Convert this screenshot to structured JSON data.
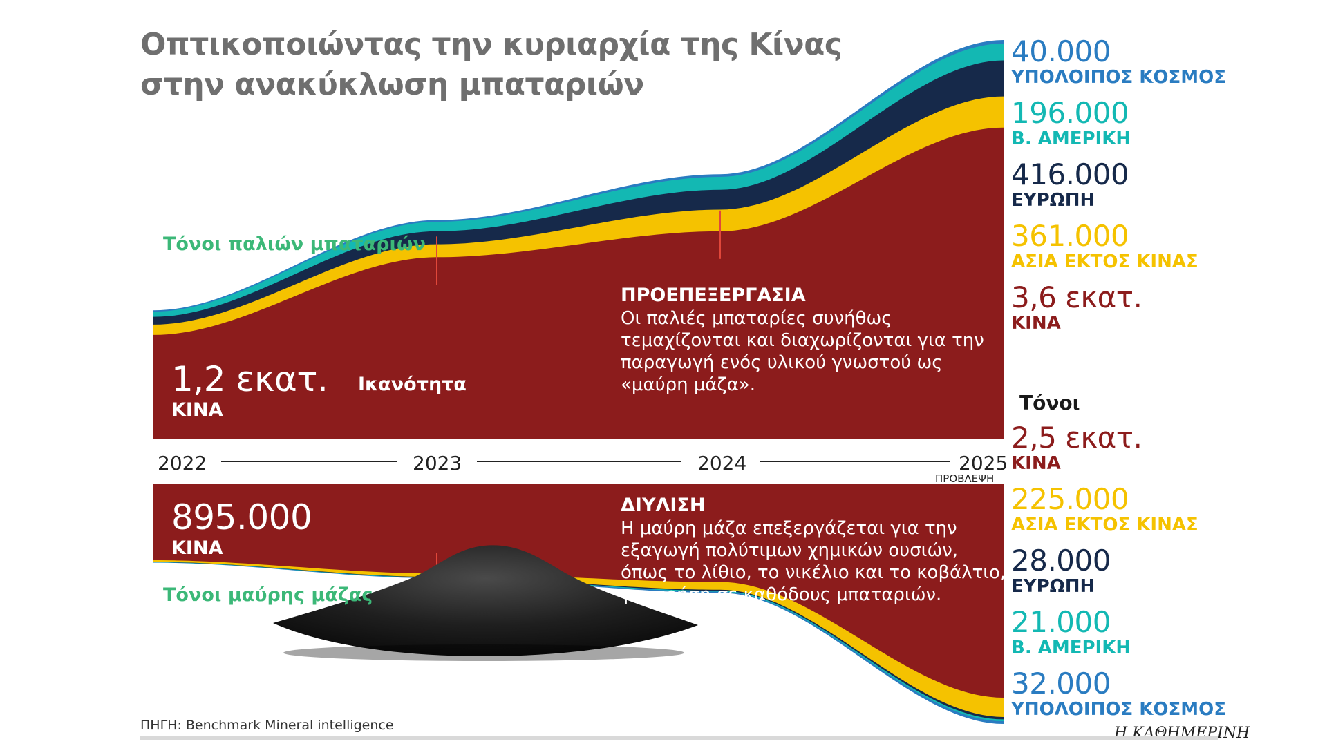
{
  "title": {
    "line1": "Οπτικοποιώντας την κυριαρχία της Κίνας",
    "line2": "στην ανακύκλωση μπαταριών"
  },
  "colors": {
    "china": "#8c1c1c",
    "asia_ex_china": "#f5c200",
    "europe": "#16294a",
    "north_america": "#13b8b3",
    "rest_of_world": "#2a7cc1",
    "label_green": "#3cb878"
  },
  "chart_data": [
    {
      "type": "area",
      "title": "ΠΡΟΕΠΕΞΕΡΓΑΣΙΑ",
      "ylabel": "Τόνοι παλιών μπαταριών",
      "unit": "Τόνοι",
      "x": [
        "2022",
        "2023",
        "2024",
        "2025"
      ],
      "x_note": "ΠΡΟΒΛΕΨΗ",
      "series": [
        {
          "name": "ΚΙΝΑ",
          "values": [
            1200000,
            2100000,
            2400000,
            3600000
          ]
        },
        {
          "name": "ΑΣΙΑ ΕΚΤΟΣ ΚΙΝΑΣ",
          "values": [
            120000,
            150000,
            250000,
            361000
          ]
        },
        {
          "name": "ΕΥΡΩΠΗ",
          "values": [
            90000,
            150000,
            230000,
            416000
          ]
        },
        {
          "name": "Β. ΑΜΕΡΙΚΗ",
          "values": [
            60000,
            110000,
            150000,
            196000
          ]
        },
        {
          "name": "ΥΠΟΛΟΙΠΟΣ ΚΟΣΜΟΣ",
          "values": [
            15000,
            20000,
            30000,
            40000
          ]
        }
      ]
    },
    {
      "type": "area",
      "title": "ΔΙΥΛΙΣΗ",
      "ylabel": "Τόνοι μαύρης μάζας",
      "unit": "Τόνοι",
      "x": [
        "2022",
        "2023",
        "2024",
        "2025"
      ],
      "x_note": "ΠΡΟΒΛΕΨΗ",
      "series": [
        {
          "name": "ΚΙΝΑ",
          "values": [
            895000,
            1050000,
            1150000,
            2500000
          ]
        },
        {
          "name": "ΑΣΙΑ ΕΚΤΟΣ ΚΙΝΑΣ",
          "values": [
            20000,
            40000,
            90000,
            225000
          ]
        },
        {
          "name": "ΕΥΡΩΠΗ",
          "values": [
            3000,
            5000,
            12000,
            28000
          ]
        },
        {
          "name": "Β. ΑΜΕΡΙΚΗ",
          "values": [
            3000,
            5000,
            10000,
            21000
          ]
        },
        {
          "name": "ΥΠΟΛΟΙΠΟΣ ΚΟΣΜΟΣ",
          "values": [
            3000,
            6000,
            14000,
            32000
          ]
        }
      ]
    }
  ],
  "top": {
    "axis_label": "Τόνοι παλιών μπαταριών",
    "start_value": "1,2 εκατ.",
    "start_region": "ΚΙΝΑ",
    "capacity_label": "Ικανότητα",
    "step_title": "ΠΡΟΕΠΕΞΕΡΓΑΣΙΑ",
    "step_text": "Οι παλιές μπαταρίες συνήθως τεμαχίζονται και διαχωρίζονται για την παραγωγή ενός υλικού γνωστού ως «μαύρη μάζα».",
    "end_labels": [
      {
        "value": "40.000",
        "region": "ΥΠΟΛΟΙΠΟΣ ΚΟΣΜΟΣ",
        "color": "#2a7cc1"
      },
      {
        "value": "196.000",
        "region": "Β. ΑΜΕΡΙΚΗ",
        "color": "#13b8b3"
      },
      {
        "value": "416.000",
        "region": "ΕΥΡΩΠΗ",
        "color": "#16294a"
      },
      {
        "value": "361.000",
        "region": "ΑΣΙΑ ΕΚΤΟΣ ΚΙΝΑΣ",
        "color": "#f5c200"
      },
      {
        "value": "3,6 εκατ.",
        "region": "ΚΙΝΑ",
        "color": "#8c1c1c"
      }
    ]
  },
  "units_label": "Τόνοι",
  "years": [
    "2022",
    "2023",
    "2024",
    "2025"
  ],
  "forecast_label": "ΠΡΟΒΛΕΨΗ",
  "bottom": {
    "axis_label": "Τόνοι μαύρης μάζας",
    "start_value": "895.000",
    "start_region": "ΚΙΝΑ",
    "step_title": "ΔΙΥΛΙΣΗ",
    "step_text": "Η μαύρη μάζα επεξεργάζεται για την εξαγωγή πολύτιμων χημικών ουσιών, όπως το λίθιο, το νικέλιο και το κοβάλτιο, για χρήση σε καθόδους μπαταριών.",
    "end_labels": [
      {
        "value": "2,5 εκατ.",
        "region": "ΚΙΝΑ",
        "color": "#8c1c1c"
      },
      {
        "value": "225.000",
        "region": "ΑΣΙΑ ΕΚΤΟΣ ΚΙΝΑΣ",
        "color": "#f5c200"
      },
      {
        "value": "28.000",
        "region": "ΕΥΡΩΠΗ",
        "color": "#16294a"
      },
      {
        "value": "21.000",
        "region": "Β. ΑΜΕΡΙΚΗ",
        "color": "#13b8b3"
      },
      {
        "value": "32.000",
        "region": "ΥΠΟΛΟΙΠΟΣ ΚΟΣΜΟΣ",
        "color": "#2a7cc1"
      }
    ]
  },
  "source": "ΠΗΓΗ: Benchmark Mineral intelligence",
  "brand": "Η ΚΑΘΗΜΕΡΙΝΗ"
}
